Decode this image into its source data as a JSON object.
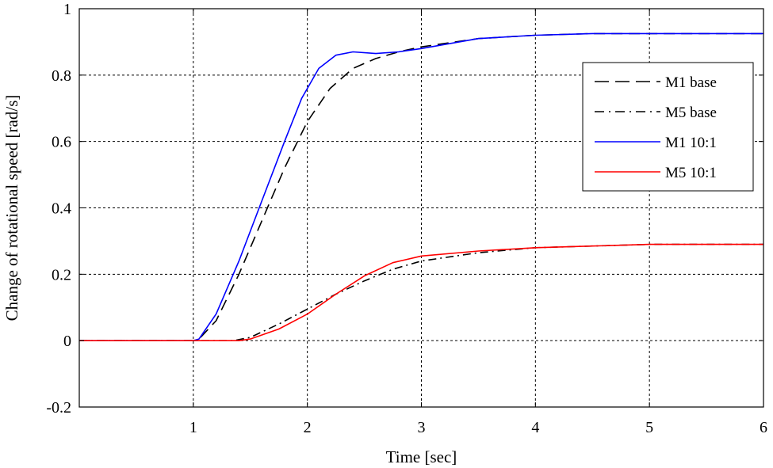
{
  "chart_data": {
    "type": "line",
    "title": "",
    "xlabel": "Time [sec]",
    "ylabel": "Change of rotational speed [rad/s]",
    "xlim": [
      0,
      6
    ],
    "ylim": [
      -0.2,
      1
    ],
    "grid": true,
    "legend_position": "top-right",
    "xticks": [
      1,
      2,
      3,
      4,
      5,
      6
    ],
    "xtick_labels": [
      "1",
      "2",
      "3",
      "4",
      "5",
      "6"
    ],
    "yticks": [
      -0.2,
      0,
      0.2,
      0.4,
      0.6,
      0.8,
      1
    ],
    "ytick_labels": [
      "-0.2",
      "0",
      "0.2",
      "0.4",
      "0.6",
      "0.8",
      "1"
    ],
    "series": [
      {
        "name": "M1 base",
        "color": "#000000",
        "dash": "dashed",
        "x": [
          0,
          1,
          1.05,
          1.2,
          1.4,
          1.6,
          1.8,
          2.0,
          2.2,
          2.4,
          2.6,
          2.8,
          3.0,
          3.5,
          4.0,
          4.5,
          5.0,
          5.5,
          6.0
        ],
        "y": [
          0,
          0,
          0.005,
          0.06,
          0.2,
          0.36,
          0.52,
          0.66,
          0.76,
          0.82,
          0.85,
          0.87,
          0.885,
          0.91,
          0.92,
          0.925,
          0.925,
          0.925,
          0.925
        ]
      },
      {
        "name": "M5 base",
        "color": "#000000",
        "dash": "dashdot",
        "x": [
          0,
          1.35,
          1.5,
          1.75,
          2.0,
          2.25,
          2.5,
          2.75,
          3.0,
          3.5,
          4.0,
          4.5,
          5.0,
          5.5,
          6.0
        ],
        "y": [
          0,
          0,
          0.01,
          0.05,
          0.095,
          0.14,
          0.18,
          0.215,
          0.24,
          0.265,
          0.28,
          0.285,
          0.29,
          0.29,
          0.29
        ]
      },
      {
        "name": "M1 10:1",
        "color": "#0000ff",
        "dash": "solid",
        "x": [
          0,
          1,
          1.05,
          1.2,
          1.4,
          1.6,
          1.8,
          1.95,
          2.1,
          2.25,
          2.4,
          2.6,
          2.8,
          3.0,
          3.5,
          4.0,
          4.5,
          5.0,
          5.5,
          6.0
        ],
        "y": [
          0,
          0,
          0.005,
          0.08,
          0.24,
          0.42,
          0.6,
          0.73,
          0.82,
          0.86,
          0.87,
          0.865,
          0.87,
          0.88,
          0.91,
          0.92,
          0.925,
          0.925,
          0.925,
          0.925
        ]
      },
      {
        "name": "M5 10:1",
        "color": "#ff0000",
        "dash": "solid",
        "x": [
          0,
          1.4,
          1.5,
          1.75,
          2.0,
          2.25,
          2.5,
          2.75,
          3.0,
          3.5,
          4.0,
          4.5,
          5.0,
          5.5,
          6.0
        ],
        "y": [
          0,
          0,
          0.005,
          0.035,
          0.08,
          0.14,
          0.195,
          0.235,
          0.255,
          0.27,
          0.28,
          0.285,
          0.29,
          0.29,
          0.29
        ]
      }
    ]
  }
}
